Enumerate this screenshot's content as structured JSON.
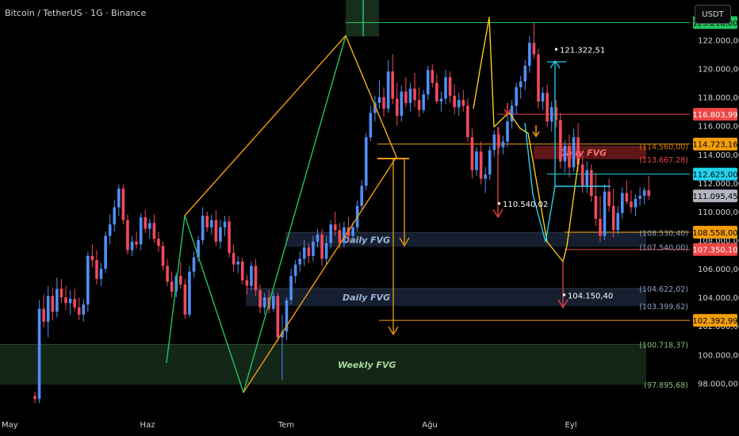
{
  "header": {
    "title": "Bitcoin / TetherUS · 1G · Binance",
    "currency": "USDT"
  },
  "chart_data": {
    "type": "candlestick",
    "y_axis": {
      "ylim": [
        96800,
        123800
      ],
      "ticks": [
        "122.000,00",
        "120.000,00",
        "118.000,00",
        "116.000,00",
        "114.000,00",
        "112.000,00",
        "110.000,00",
        "108.000,00",
        "106.000,00",
        "104.000,00",
        "102.000,00",
        "100.000,00",
        "98.000,00"
      ]
    },
    "x_axis": {
      "ticks": [
        "May",
        "Haz",
        "Tem",
        "Ağu",
        "Eyl"
      ]
    },
    "candles": [
      {
        "o": 97100,
        "h": 97400,
        "l": 96600,
        "c": 96900
      },
      {
        "o": 96900,
        "h": 103800,
        "l": 96600,
        "c": 103200
      },
      {
        "o": 103200,
        "h": 104200,
        "l": 101900,
        "c": 102300
      },
      {
        "o": 102300,
        "h": 104800,
        "l": 101200,
        "c": 104100
      },
      {
        "o": 104100,
        "h": 104700,
        "l": 102400,
        "c": 103000
      },
      {
        "o": 103000,
        "h": 105400,
        "l": 102600,
        "c": 104600
      },
      {
        "o": 104600,
        "h": 105300,
        "l": 103600,
        "c": 104000
      },
      {
        "o": 104000,
        "h": 104800,
        "l": 103100,
        "c": 103600
      },
      {
        "o": 103600,
        "h": 104500,
        "l": 102800,
        "c": 103900
      },
      {
        "o": 103900,
        "h": 104600,
        "l": 103000,
        "c": 103300
      },
      {
        "o": 103300,
        "h": 104000,
        "l": 102400,
        "c": 102800
      },
      {
        "o": 102800,
        "h": 103900,
        "l": 102300,
        "c": 103500
      },
      {
        "o": 103500,
        "h": 107200,
        "l": 103000,
        "c": 106900
      },
      {
        "o": 106900,
        "h": 107700,
        "l": 106100,
        "c": 106600
      },
      {
        "o": 106600,
        "h": 107300,
        "l": 104900,
        "c": 105300
      },
      {
        "o": 105300,
        "h": 106400,
        "l": 104800,
        "c": 106000
      },
      {
        "o": 106000,
        "h": 108600,
        "l": 105700,
        "c": 108300
      },
      {
        "o": 108300,
        "h": 109800,
        "l": 107700,
        "c": 109100
      },
      {
        "o": 109100,
        "h": 110800,
        "l": 108600,
        "c": 110300
      },
      {
        "o": 110300,
        "h": 111900,
        "l": 109700,
        "c": 111600
      },
      {
        "o": 111600,
        "h": 111900,
        "l": 109100,
        "c": 109400
      },
      {
        "o": 109400,
        "h": 109800,
        "l": 107000,
        "c": 107300
      },
      {
        "o": 107300,
        "h": 108300,
        "l": 106900,
        "c": 107900
      },
      {
        "o": 107900,
        "h": 108600,
        "l": 107400,
        "c": 107700
      },
      {
        "o": 107700,
        "h": 109900,
        "l": 107300,
        "c": 109600
      },
      {
        "o": 109600,
        "h": 110100,
        "l": 108500,
        "c": 108800
      },
      {
        "o": 108800,
        "h": 109500,
        "l": 108100,
        "c": 109200
      },
      {
        "o": 109200,
        "h": 109800,
        "l": 107800,
        "c": 108100
      },
      {
        "o": 108100,
        "h": 108600,
        "l": 107200,
        "c": 107600
      },
      {
        "o": 107600,
        "h": 107900,
        "l": 105900,
        "c": 106200
      },
      {
        "o": 106200,
        "h": 106700,
        "l": 104800,
        "c": 105100
      },
      {
        "o": 105100,
        "h": 105800,
        "l": 104000,
        "c": 104400
      },
      {
        "o": 104400,
        "h": 105700,
        "l": 104000,
        "c": 105500
      },
      {
        "o": 105500,
        "h": 106500,
        "l": 104600,
        "c": 104900
      },
      {
        "o": 104900,
        "h": 105300,
        "l": 102500,
        "c": 102800
      },
      {
        "o": 102800,
        "h": 106200,
        "l": 102600,
        "c": 105800
      },
      {
        "o": 105800,
        "h": 107200,
        "l": 105400,
        "c": 106800
      },
      {
        "o": 106800,
        "h": 108300,
        "l": 106500,
        "c": 108000
      },
      {
        "o": 108000,
        "h": 110300,
        "l": 107700,
        "c": 109700
      },
      {
        "o": 109700,
        "h": 110000,
        "l": 108600,
        "c": 108900
      },
      {
        "o": 108900,
        "h": 109800,
        "l": 108400,
        "c": 109400
      },
      {
        "o": 109400,
        "h": 110100,
        "l": 107600,
        "c": 107900
      },
      {
        "o": 107900,
        "h": 109400,
        "l": 107400,
        "c": 108900
      },
      {
        "o": 108900,
        "h": 109700,
        "l": 108300,
        "c": 109300
      },
      {
        "o": 109300,
        "h": 109700,
        "l": 106800,
        "c": 107100
      },
      {
        "o": 107100,
        "h": 107700,
        "l": 105800,
        "c": 106300
      },
      {
        "o": 106300,
        "h": 106900,
        "l": 105700,
        "c": 106500
      },
      {
        "o": 106500,
        "h": 106800,
        "l": 104900,
        "c": 105200
      },
      {
        "o": 105200,
        "h": 105600,
        "l": 104200,
        "c": 104800
      },
      {
        "o": 104800,
        "h": 106500,
        "l": 104500,
        "c": 106200
      },
      {
        "o": 106200,
        "h": 106700,
        "l": 104100,
        "c": 104500
      },
      {
        "o": 104500,
        "h": 104900,
        "l": 102900,
        "c": 103300
      },
      {
        "o": 103300,
        "h": 104300,
        "l": 102800,
        "c": 104000
      },
      {
        "o": 104000,
        "h": 104500,
        "l": 102900,
        "c": 103200
      },
      {
        "o": 103200,
        "h": 104400,
        "l": 103000,
        "c": 104100
      },
      {
        "o": 104100,
        "h": 104300,
        "l": 100900,
        "c": 101200
      },
      {
        "o": 101200,
        "h": 102800,
        "l": 98200,
        "c": 101600
      },
      {
        "o": 101600,
        "h": 104000,
        "l": 101000,
        "c": 103800
      },
      {
        "o": 103800,
        "h": 106000,
        "l": 103500,
        "c": 105500
      },
      {
        "o": 105500,
        "h": 106600,
        "l": 105000,
        "c": 106300
      },
      {
        "o": 106300,
        "h": 107200,
        "l": 105800,
        "c": 106700
      },
      {
        "o": 106700,
        "h": 108000,
        "l": 106200,
        "c": 107500
      },
      {
        "o": 107500,
        "h": 107800,
        "l": 106400,
        "c": 106900
      },
      {
        "o": 106900,
        "h": 108300,
        "l": 106500,
        "c": 107900
      },
      {
        "o": 107900,
        "h": 108800,
        "l": 107500,
        "c": 108400
      },
      {
        "o": 108400,
        "h": 108800,
        "l": 106200,
        "c": 106700
      },
      {
        "o": 106700,
        "h": 108300,
        "l": 106300,
        "c": 107800
      },
      {
        "o": 107800,
        "h": 109400,
        "l": 107400,
        "c": 109100
      },
      {
        "o": 109100,
        "h": 110000,
        "l": 108300,
        "c": 108700
      },
      {
        "o": 108700,
        "h": 109200,
        "l": 107400,
        "c": 107800
      },
      {
        "o": 107800,
        "h": 109300,
        "l": 107500,
        "c": 108900
      },
      {
        "o": 108900,
        "h": 109600,
        "l": 107900,
        "c": 108300
      },
      {
        "o": 108300,
        "h": 109300,
        "l": 107900,
        "c": 108900
      },
      {
        "o": 108900,
        "h": 110800,
        "l": 108600,
        "c": 110400
      },
      {
        "o": 110400,
        "h": 112200,
        "l": 110100,
        "c": 111800
      },
      {
        "o": 111800,
        "h": 115500,
        "l": 111500,
        "c": 115200
      },
      {
        "o": 115200,
        "h": 117400,
        "l": 114900,
        "c": 116900
      },
      {
        "o": 116900,
        "h": 118100,
        "l": 116300,
        "c": 117600
      },
      {
        "o": 117600,
        "h": 119200,
        "l": 117200,
        "c": 118000
      },
      {
        "o": 118000,
        "h": 118700,
        "l": 116600,
        "c": 117200
      },
      {
        "o": 117200,
        "h": 120600,
        "l": 116900,
        "c": 119800
      },
      {
        "o": 119800,
        "h": 121000,
        "l": 117500,
        "c": 117900
      },
      {
        "o": 117900,
        "h": 119000,
        "l": 116000,
        "c": 116700
      },
      {
        "o": 116700,
        "h": 118800,
        "l": 116300,
        "c": 118400
      },
      {
        "o": 118400,
        "h": 119400,
        "l": 117300,
        "c": 117600
      },
      {
        "o": 117600,
        "h": 119000,
        "l": 117000,
        "c": 118600
      },
      {
        "o": 118600,
        "h": 119700,
        "l": 117300,
        "c": 117800
      },
      {
        "o": 117800,
        "h": 118700,
        "l": 116600,
        "c": 117100
      },
      {
        "o": 117100,
        "h": 118500,
        "l": 116900,
        "c": 118200
      },
      {
        "o": 118200,
        "h": 120200,
        "l": 117800,
        "c": 119900
      },
      {
        "o": 119900,
        "h": 120300,
        "l": 118700,
        "c": 119000
      },
      {
        "o": 119000,
        "h": 119600,
        "l": 117500,
        "c": 117700
      },
      {
        "o": 117700,
        "h": 118400,
        "l": 117000,
        "c": 117900
      },
      {
        "o": 117900,
        "h": 119900,
        "l": 117500,
        "c": 119400
      },
      {
        "o": 119400,
        "h": 119800,
        "l": 117600,
        "c": 118100
      },
      {
        "o": 118100,
        "h": 118900,
        "l": 116800,
        "c": 117300
      },
      {
        "o": 117300,
        "h": 118300,
        "l": 116700,
        "c": 117800
      },
      {
        "o": 117800,
        "h": 118500,
        "l": 117000,
        "c": 117400
      },
      {
        "o": 117400,
        "h": 117900,
        "l": 114900,
        "c": 115200
      },
      {
        "o": 115200,
        "h": 115800,
        "l": 112300,
        "c": 112900
      },
      {
        "o": 112900,
        "h": 114500,
        "l": 112500,
        "c": 114200
      },
      {
        "o": 114200,
        "h": 114900,
        "l": 111900,
        "c": 112300
      },
      {
        "o": 112300,
        "h": 113100,
        "l": 111300,
        "c": 112600
      },
      {
        "o": 112600,
        "h": 114600,
        "l": 112200,
        "c": 114300
      },
      {
        "o": 114300,
        "h": 115700,
        "l": 113800,
        "c": 115400
      },
      {
        "o": 115400,
        "h": 115900,
        "l": 114000,
        "c": 114500
      },
      {
        "o": 114500,
        "h": 115300,
        "l": 114000,
        "c": 114900
      },
      {
        "o": 114900,
        "h": 116800,
        "l": 114500,
        "c": 116300
      },
      {
        "o": 116300,
        "h": 117800,
        "l": 115800,
        "c": 117400
      },
      {
        "o": 117400,
        "h": 119000,
        "l": 116800,
        "c": 118700
      },
      {
        "o": 118700,
        "h": 119500,
        "l": 117900,
        "c": 119100
      },
      {
        "o": 119100,
        "h": 120600,
        "l": 118500,
        "c": 120200
      },
      {
        "o": 120200,
        "h": 122300,
        "l": 119700,
        "c": 121800
      },
      {
        "o": 121800,
        "h": 123200,
        "l": 120700,
        "c": 121000
      },
      {
        "o": 121000,
        "h": 121400,
        "l": 117200,
        "c": 117700
      },
      {
        "o": 117700,
        "h": 118700,
        "l": 117100,
        "c": 118300
      },
      {
        "o": 118300,
        "h": 118900,
        "l": 115900,
        "c": 116300
      },
      {
        "o": 116300,
        "h": 117700,
        "l": 115600,
        "c": 117300
      },
      {
        "o": 117300,
        "h": 117800,
        "l": 115900,
        "c": 116400
      },
      {
        "o": 116400,
        "h": 116900,
        "l": 113000,
        "c": 113500
      },
      {
        "o": 113500,
        "h": 115000,
        "l": 112700,
        "c": 114600
      },
      {
        "o": 114600,
        "h": 115400,
        "l": 112400,
        "c": 113100
      },
      {
        "o": 113100,
        "h": 115800,
        "l": 112800,
        "c": 115200
      },
      {
        "o": 115200,
        "h": 116200,
        "l": 112800,
        "c": 113300
      },
      {
        "o": 113300,
        "h": 113900,
        "l": 111300,
        "c": 111800
      },
      {
        "o": 111800,
        "h": 113500,
        "l": 111300,
        "c": 112900
      },
      {
        "o": 112900,
        "h": 113300,
        "l": 110700,
        "c": 111100
      },
      {
        "o": 111100,
        "h": 112700,
        "l": 109000,
        "c": 109500
      },
      {
        "o": 109500,
        "h": 111100,
        "l": 107900,
        "c": 108300
      },
      {
        "o": 108300,
        "h": 111900,
        "l": 108000,
        "c": 111400
      },
      {
        "o": 111400,
        "h": 112300,
        "l": 110000,
        "c": 110400
      },
      {
        "o": 110400,
        "h": 111600,
        "l": 108200,
        "c": 108700
      },
      {
        "o": 108700,
        "h": 110400,
        "l": 108400,
        "c": 109900
      },
      {
        "o": 109900,
        "h": 111700,
        "l": 109500,
        "c": 111300
      },
      {
        "o": 111300,
        "h": 112200,
        "l": 110500,
        "c": 110700
      },
      {
        "o": 110700,
        "h": 111500,
        "l": 109900,
        "c": 110300
      },
      {
        "o": 110300,
        "h": 111200,
        "l": 109700,
        "c": 110900
      },
      {
        "o": 110900,
        "h": 111700,
        "l": 110400,
        "c": 111100
      },
      {
        "o": 111100,
        "h": 111700,
        "l": 110500,
        "c": 111500
      },
      {
        "o": 111500,
        "h": 112500,
        "l": 110800,
        "c": 111100
      }
    ],
    "price_labels": [
      {
        "text": "123.218,00",
        "value": 123218,
        "color": "#22c55e",
        "text_color": "#000000"
      },
      {
        "text": "116.803,99",
        "value": 116804,
        "color": "#ef4444",
        "text_color": "#ffffff"
      },
      {
        "text": "114.723,16",
        "value": 114723,
        "color": "#f59e0b",
        "text_color": "#000000"
      },
      {
        "text": "112.625,00",
        "value": 112625,
        "color": "#22d3ee",
        "text_color": "#000000"
      },
      {
        "text": "111.095,45",
        "value": 111095,
        "color": "#b2b5be",
        "text_color": "#000000"
      },
      {
        "text": "108.558,00",
        "value": 108558,
        "color": "#f59e0b",
        "text_color": "#000000"
      },
      {
        "text": "107.350,10",
        "value": 107350,
        "color": "#ef4444",
        "text_color": "#ffffff"
      },
      {
        "text": "102.392,99",
        "value": 102393,
        "color": "#f59e0b",
        "text_color": "#000000"
      }
    ],
    "level_labels": [
      {
        "text": "(114.560,00)",
        "value": 114560,
        "color": "#d97706"
      },
      {
        "text": "(113.667,28)",
        "value": 113667,
        "color": "#ef4444"
      },
      {
        "text": "(108.530,40)",
        "value": 108530,
        "color": "#8fa3c0"
      },
      {
        "text": "(107.540,00)",
        "value": 107540,
        "color": "#8fa3c0"
      },
      {
        "text": "(104.622,02)",
        "value": 104622,
        "color": "#8fa3c0"
      },
      {
        "text": "(103.399,62)",
        "value": 103400,
        "color": "#8fa3c0"
      },
      {
        "text": "(100.718,37)",
        "value": 100718,
        "color": "#86c07a"
      },
      {
        "text": "(97.895,68)",
        "value": 97896,
        "color": "#86c07a"
      }
    ],
    "zones": [
      {
        "label": "Daily FVG",
        "top": 114560,
        "bottom": 113667,
        "color": "#7f1d1d",
        "text_color": "#f87171"
      },
      {
        "label": "Daily FVG",
        "top": 108530,
        "bottom": 107540,
        "color": "#1e2a3f",
        "text_color": "#9fb4d8"
      },
      {
        "label": "Daily FVG",
        "top": 104622,
        "bottom": 103400,
        "color": "#1e2a3f",
        "text_color": "#9fb4d8"
      },
      {
        "label": "Weekly FVG",
        "top": 100718,
        "bottom": 97896,
        "color": "#1a3320",
        "text_color": "#a7d99a"
      }
    ],
    "targets": [
      {
        "text": "121.322,51",
        "value": 121322,
        "color": "#22d3ee"
      },
      {
        "text": "110.540,02",
        "value": 110540,
        "color": "#ef4444"
      },
      {
        "text": "104.150,40",
        "value": 104150,
        "color": "#ef4444"
      }
    ],
    "colors": {
      "bull": "#4f8ff7",
      "bear": "#f2495c",
      "background": "#000000"
    }
  }
}
